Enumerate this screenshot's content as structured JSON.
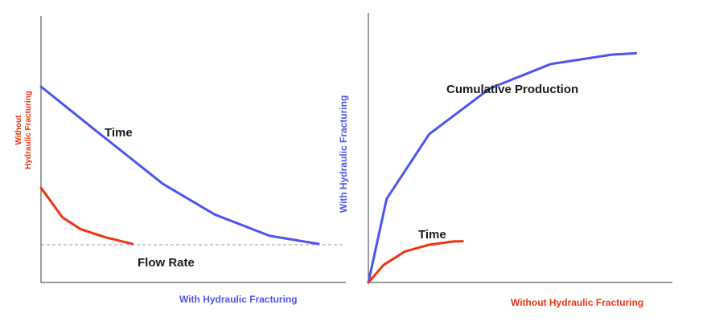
{
  "colors": {
    "with_hydraulic_fracturing": "#4a55ee",
    "without_hydraulic_fracturing": "#ee3311",
    "axis": "#3a3a3a",
    "text": "#1a1a1a",
    "reference_line": "#9a9a9a"
  },
  "chart_data": [
    {
      "type": "line",
      "title": "",
      "annotations": {
        "curve_label": "Time",
        "x_quantity_label": "Flow Rate"
      },
      "xlabel": "With Hydraulic Fracturing",
      "ylabel": "Without\nHydraulic Fracturing",
      "ylabel_lines": [
        "Without",
        "Hydraulic Fracturing"
      ],
      "xlim": [
        0,
        1
      ],
      "ylim": [
        0,
        1
      ],
      "grid": false,
      "axis_ticks": false,
      "reference_line": {
        "style": "dashed",
        "y": 0.145
      },
      "series": [
        {
          "key": "with",
          "color": "#4a55ee",
          "x": [
            0.0,
            0.18,
            0.4,
            0.57,
            0.75,
            0.91
          ],
          "y": [
            0.735,
            0.57,
            0.37,
            0.255,
            0.175,
            0.145
          ]
        },
        {
          "key": "without",
          "color": "#ee3311",
          "x": [
            0.0,
            0.07,
            0.13,
            0.21,
            0.3
          ],
          "y": [
            0.355,
            0.245,
            0.2,
            0.17,
            0.145
          ]
        }
      ]
    },
    {
      "type": "line",
      "title": "",
      "annotations": {
        "with_curve_label": "Cumulative Production",
        "without_curve_label": "Time"
      },
      "xlabel": "Without Hydraulic Fracturing",
      "ylabel": "With Hydraulic Fracturing",
      "xlim": [
        0,
        1
      ],
      "ylim": [
        0,
        1
      ],
      "grid": false,
      "axis_ticks": false,
      "series": [
        {
          "key": "with",
          "color": "#4a55ee",
          "x": [
            0.0,
            0.06,
            0.2,
            0.4,
            0.6,
            0.8,
            0.88
          ],
          "y": [
            0.0,
            0.31,
            0.55,
            0.72,
            0.81,
            0.845,
            0.85
          ]
        },
        {
          "key": "without",
          "color": "#ee3311",
          "x": [
            0.0,
            0.05,
            0.12,
            0.2,
            0.28,
            0.31
          ],
          "y": [
            0.0,
            0.065,
            0.115,
            0.14,
            0.152,
            0.153
          ]
        }
      ]
    }
  ]
}
